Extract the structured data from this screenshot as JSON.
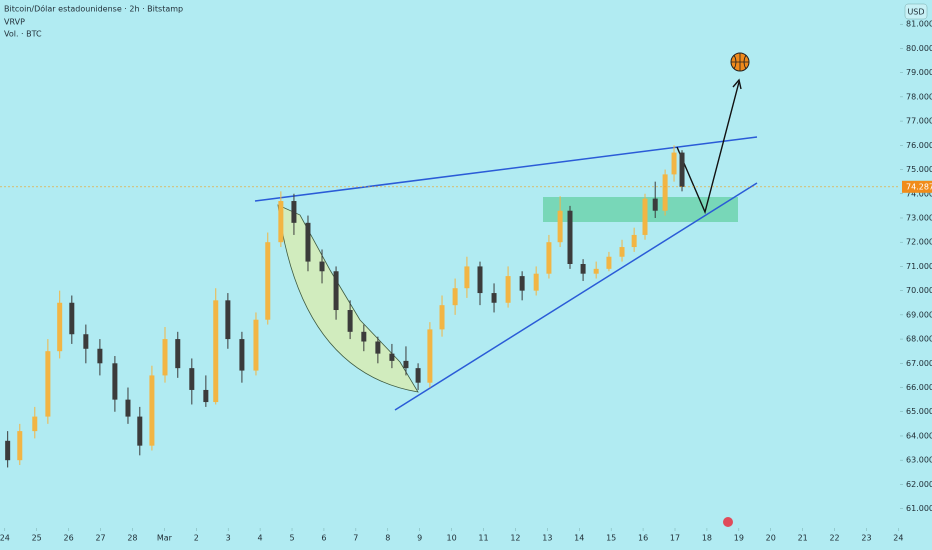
{
  "chart_data": {
    "type": "candlestick",
    "title": "Bitcoin/Dólar estadounidense · 2h · Bitstamp",
    "indicators": [
      "VRVP",
      "Vol. · BTC"
    ],
    "currency": "USD",
    "background": "#b1ebf2",
    "up_color": "#f2b544",
    "down_color": "#3b3b3b",
    "x": [
      0.09,
      0.47,
      0.94,
      1.35,
      1.72,
      2.1,
      2.54,
      2.98,
      3.45,
      3.86,
      4.23,
      4.61,
      5.02,
      5.42,
      5.86,
      6.3,
      6.61,
      6.99,
      7.43,
      7.87,
      8.24,
      8.65,
      9.06,
      9.5,
      9.94,
      10.38,
      10.82,
      11.25,
      11.69,
      12.13,
      12.57,
      12.95,
      13.32,
      13.7,
      14.11,
      14.48,
      14.89,
      15.33,
      15.77,
      16.21,
      16.65,
      17.05,
      17.4,
      17.71,
      18.12,
      18.53,
      18.93,
      19.34,
      19.72,
      20.06,
      20.38,
      20.69,
      20.97,
      21.22
    ],
    "open": [
      63800,
      63000,
      64200,
      64800,
      67500,
      69500,
      68200,
      67600,
      67000,
      65500,
      64800,
      63600,
      66500,
      68000,
      66800,
      65900,
      65400,
      69600,
      68000,
      66700,
      68800,
      72000,
      73700,
      72800,
      71200,
      70800,
      69200,
      68300,
      67900,
      67400,
      67100,
      66800,
      66200,
      68400,
      69400,
      70100,
      71000,
      69900,
      69500,
      70600,
      70000,
      70700,
      72000,
      73300,
      71100,
      70700,
      70900,
      71400,
      71800,
      72300,
      73800,
      73300,
      74800,
      75700
    ],
    "high": [
      64200,
      64500,
      65200,
      68000,
      70000,
      69800,
      68600,
      68000,
      67300,
      66000,
      65200,
      66900,
      68500,
      68300,
      67200,
      66500,
      70100,
      69900,
      68300,
      69100,
      72400,
      74100,
      74000,
      73100,
      71700,
      71000,
      69600,
      68600,
      68100,
      67800,
      67700,
      67000,
      68700,
      69800,
      70500,
      71400,
      71200,
      70300,
      71000,
      70800,
      71000,
      72300,
      73900,
      73500,
      71300,
      71200,
      71600,
      72100,
      72600,
      74000,
      74500,
      75000,
      76000,
      75800
    ],
    "low": [
      62700,
      62800,
      63900,
      64500,
      67200,
      67800,
      67000,
      66500,
      65000,
      64500,
      63200,
      63400,
      66200,
      66400,
      65300,
      65200,
      65300,
      67600,
      66200,
      66500,
      68600,
      71800,
      72300,
      70800,
      70300,
      68800,
      68000,
      67500,
      67000,
      66800,
      66500,
      65900,
      66000,
      68100,
      69000,
      69700,
      69400,
      69100,
      69300,
      69600,
      69800,
      70500,
      71800,
      70900,
      70400,
      70500,
      70800,
      71200,
      71600,
      72100,
      73000,
      73100,
      74500,
      74100
    ],
    "close": [
      63000,
      64200,
      64800,
      67500,
      69500,
      68200,
      67600,
      67000,
      65500,
      64800,
      63600,
      66500,
      68000,
      66800,
      65900,
      65400,
      69600,
      68000,
      66700,
      68800,
      72000,
      73700,
      72800,
      71200,
      70800,
      69200,
      68300,
      67900,
      67400,
      67100,
      66800,
      66200,
      68400,
      69400,
      70100,
      71000,
      69900,
      69500,
      70600,
      70000,
      70700,
      72000,
      73300,
      71100,
      70700,
      70900,
      71400,
      71800,
      72300,
      73800,
      73300,
      74800,
      75700,
      74287
    ],
    "last_price": {
      "value": 74287,
      "label": "74.287"
    },
    "xlim": [
      -0.15,
      28.05
    ],
    "ylim": [
      60200,
      82000
    ],
    "xticks": [
      {
        "value": 0,
        "label": "24"
      },
      {
        "value": 1,
        "label": "25"
      },
      {
        "value": 2,
        "label": "26"
      },
      {
        "value": 3,
        "label": "27"
      },
      {
        "value": 4,
        "label": "28"
      },
      {
        "value": 5,
        "label": "Mar"
      },
      {
        "value": 6,
        "label": "2"
      },
      {
        "value": 7,
        "label": "3"
      },
      {
        "value": 8,
        "label": "4"
      },
      {
        "value": 9,
        "label": "5"
      },
      {
        "value": 10,
        "label": "6"
      },
      {
        "value": 11,
        "label": "7"
      },
      {
        "value": 12,
        "label": "8"
      },
      {
        "value": 13,
        "label": "9"
      },
      {
        "value": 14,
        "label": "10"
      },
      {
        "value": 15,
        "label": "11"
      },
      {
        "value": 16,
        "label": "12"
      },
      {
        "value": 17,
        "label": "13"
      },
      {
        "value": 18,
        "label": "14"
      },
      {
        "value": 19,
        "label": "15"
      },
      {
        "value": 20,
        "label": "16"
      },
      {
        "value": 21,
        "label": "17"
      },
      {
        "value": 22,
        "label": "18"
      },
      {
        "value": 23,
        "label": "19"
      },
      {
        "value": 24,
        "label": "20"
      },
      {
        "value": 25,
        "label": "21"
      },
      {
        "value": 26,
        "label": "22"
      },
      {
        "value": 27,
        "label": "23"
      },
      {
        "value": 28,
        "label": "24"
      }
    ],
    "yticks": [
      {
        "value": 61000,
        "label": "61.000"
      },
      {
        "value": 62000,
        "label": "62.000"
      },
      {
        "value": 63000,
        "label": "63.000"
      },
      {
        "value": 64000,
        "label": "64.000"
      },
      {
        "value": 65000,
        "label": "65.000"
      },
      {
        "value": 66000,
        "label": "66.000"
      },
      {
        "value": 67000,
        "label": "67.000"
      },
      {
        "value": 68000,
        "label": "68.000"
      },
      {
        "value": 69000,
        "label": "69.000"
      },
      {
        "value": 70000,
        "label": "70.000"
      },
      {
        "value": 71000,
        "label": "71.000"
      },
      {
        "value": 72000,
        "label": "72.000"
      },
      {
        "value": 73000,
        "label": "73.000"
      },
      {
        "value": 74000,
        "label": "74.000"
      },
      {
        "value": 75000,
        "label": "75.000"
      },
      {
        "value": 76000,
        "label": "76.000"
      },
      {
        "value": 77000,
        "label": "77.000"
      },
      {
        "value": 78000,
        "label": "78.000"
      },
      {
        "value": 79000,
        "label": "79.000"
      },
      {
        "value": 80000,
        "label": "80.000"
      },
      {
        "value": 81000,
        "label": "81.000"
      }
    ]
  }
}
